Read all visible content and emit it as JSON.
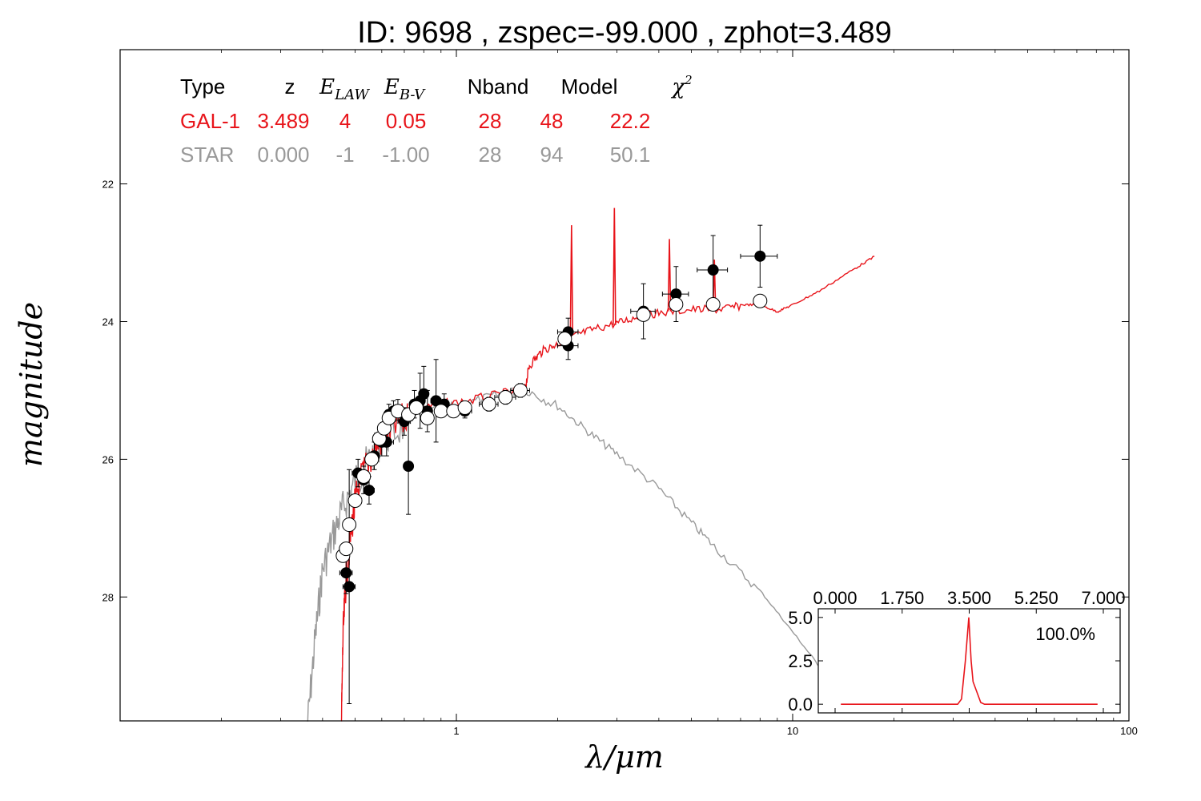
{
  "title": "ID:  9698  , zspec=-99.000 , zphot=3.489",
  "colors": {
    "galaxy": "#e8141a",
    "star": "#999999",
    "axis": "#000000"
  },
  "table": {
    "headers": [
      "Type",
      "z",
      "E_LAW",
      "E_B-V",
      "Nband",
      "Model",
      "χ²"
    ],
    "rows": [
      {
        "name": "galaxy",
        "color": "#e8141a",
        "cells": [
          "GAL-1",
          "3.489",
          "4",
          "0.05",
          "28",
          "48",
          "22.2"
        ]
      },
      {
        "name": "star",
        "color": "#999999",
        "cells": [
          "STAR",
          "0.000",
          "-1",
          "-1.00",
          "28",
          "94",
          "50.1"
        ]
      }
    ]
  },
  "chart_data": [
    {
      "type": "scatter",
      "xlabel": "λ/μm",
      "ylabel": "magnitude",
      "xscale": "log",
      "xlim": [
        0.1,
        100
      ],
      "ylim": [
        29.8,
        20.05
      ],
      "y_inverted": true,
      "xticks": [
        1,
        10,
        100
      ],
      "xtick_labels": [
        "1",
        "10",
        "100"
      ],
      "yticks": [
        22,
        24,
        26,
        28
      ],
      "ytick_labels": [
        "22",
        "24",
        "26",
        "28"
      ],
      "series": [
        {
          "kind": "observed",
          "marker": "filled",
          "points": [
            {
              "x": 0.47,
              "y": 27.65,
              "xerr": 0.02,
              "yerr": 0.3
            },
            {
              "x": 0.48,
              "y": 27.85,
              "xerr": 0.02,
              "yerr": 1.7
            },
            {
              "x": 0.51,
              "y": 26.2,
              "xerr": 0.02,
              "yerr": 0.2
            },
            {
              "x": 0.53,
              "y": 26.3,
              "xerr": 0.02,
              "yerr": 0.2
            },
            {
              "x": 0.55,
              "y": 26.45,
              "xerr": 0.02,
              "yerr": 0.2
            },
            {
              "x": 0.57,
              "y": 25.95,
              "xerr": 0.02,
              "yerr": 0.2
            },
            {
              "x": 0.6,
              "y": 25.75,
              "xerr": 0.03,
              "yerr": 0.2
            },
            {
              "x": 0.62,
              "y": 25.75,
              "xerr": 0.03,
              "yerr": 0.2
            },
            {
              "x": 0.63,
              "y": 25.35,
              "xerr": 0.02,
              "yerr": 0.15
            },
            {
              "x": 0.65,
              "y": 25.3,
              "xerr": 0.02,
              "yerr": 0.15
            },
            {
              "x": 0.67,
              "y": 25.28,
              "xerr": 0.02,
              "yerr": 0.15
            },
            {
              "x": 0.7,
              "y": 25.45,
              "xerr": 0.03,
              "yerr": 0.2
            },
            {
              "x": 0.72,
              "y": 26.1,
              "xerr": 0.02,
              "yerr": 0.7
            },
            {
              "x": 0.75,
              "y": 25.2,
              "xerr": 0.02,
              "yerr": 0.2
            },
            {
              "x": 0.78,
              "y": 25.15,
              "xerr": 0.02,
              "yerr": 0.4
            },
            {
              "x": 0.8,
              "y": 25.05,
              "xerr": 0.02,
              "yerr": 0.4
            },
            {
              "x": 0.82,
              "y": 25.3,
              "xerr": 0.02,
              "yerr": 0.3
            },
            {
              "x": 0.87,
              "y": 25.15,
              "xerr": 0.03,
              "yerr": 0.6
            },
            {
              "x": 0.92,
              "y": 25.2,
              "xerr": 0.03,
              "yerr": 0.15
            },
            {
              "x": 1.06,
              "y": 25.3,
              "xerr": 0.05,
              "yerr": 0.1
            },
            {
              "x": 1.25,
              "y": 25.2,
              "xerr": 0.08,
              "yerr": 0.1
            },
            {
              "x": 1.4,
              "y": 25.1,
              "xerr": 0.1,
              "yerr": 0.1
            },
            {
              "x": 1.55,
              "y": 25.0,
              "xerr": 0.1,
              "yerr": 0.1
            },
            {
              "x": 2.15,
              "y": 24.15,
              "xerr": 0.15,
              "yerr": 0.2
            },
            {
              "x": 2.15,
              "y": 24.35,
              "xerr": 0.15,
              "yerr": 0.2
            },
            {
              "x": 3.6,
              "y": 23.85,
              "xerr": 0.3,
              "yerr": 0.4
            },
            {
              "x": 4.5,
              "y": 23.6,
              "xerr": 0.4,
              "yerr": 0.4
            },
            {
              "x": 5.8,
              "y": 23.25,
              "xerr": 0.6,
              "yerr": 0.5
            },
            {
              "x": 8.0,
              "y": 23.05,
              "xerr": 1.0,
              "yerr": 0.45
            }
          ]
        },
        {
          "kind": "model",
          "marker": "open",
          "points": [
            {
              "x": 0.46,
              "y": 27.4
            },
            {
              "x": 0.47,
              "y": 27.3
            },
            {
              "x": 0.48,
              "y": 26.95
            },
            {
              "x": 0.5,
              "y": 26.6
            },
            {
              "x": 0.53,
              "y": 26.25
            },
            {
              "x": 0.56,
              "y": 26.0
            },
            {
              "x": 0.59,
              "y": 25.7
            },
            {
              "x": 0.61,
              "y": 25.55
            },
            {
              "x": 0.63,
              "y": 25.4
            },
            {
              "x": 0.67,
              "y": 25.3
            },
            {
              "x": 0.72,
              "y": 25.35
            },
            {
              "x": 0.76,
              "y": 25.25
            },
            {
              "x": 0.82,
              "y": 25.4
            },
            {
              "x": 0.9,
              "y": 25.3
            },
            {
              "x": 0.98,
              "y": 25.3
            },
            {
              "x": 1.06,
              "y": 25.25
            },
            {
              "x": 1.25,
              "y": 25.2
            },
            {
              "x": 1.4,
              "y": 25.1
            },
            {
              "x": 1.55,
              "y": 25.0
            },
            {
              "x": 2.1,
              "y": 24.25
            },
            {
              "x": 3.6,
              "y": 23.9
            },
            {
              "x": 4.5,
              "y": 23.75
            },
            {
              "x": 5.8,
              "y": 23.75
            },
            {
              "x": 8.0,
              "y": 23.7
            }
          ]
        },
        {
          "kind": "galaxy-template",
          "line": "red",
          "points": [
            {
              "x": 0.455,
              "y": 29.8
            },
            {
              "x": 0.46,
              "y": 28.5
            },
            {
              "x": 0.47,
              "y": 27.6
            },
            {
              "x": 0.49,
              "y": 26.8
            },
            {
              "x": 0.51,
              "y": 26.3
            },
            {
              "x": 0.55,
              "y": 25.9
            },
            {
              "x": 0.6,
              "y": 25.6
            },
            {
              "x": 0.65,
              "y": 25.4
            },
            {
              "x": 0.72,
              "y": 25.3
            },
            {
              "x": 0.8,
              "y": 25.2
            },
            {
              "x": 1.0,
              "y": 25.15
            },
            {
              "x": 1.3,
              "y": 25.05
            },
            {
              "x": 1.6,
              "y": 24.95
            },
            {
              "x": 1.65,
              "y": 24.6
            },
            {
              "x": 1.8,
              "y": 24.4
            },
            {
              "x": 2.0,
              "y": 24.3
            },
            {
              "x": 2.2,
              "y": 24.2
            },
            {
              "x": 2.5,
              "y": 24.1
            },
            {
              "x": 3.0,
              "y": 24.0
            },
            {
              "x": 3.5,
              "y": 23.9
            },
            {
              "x": 4.0,
              "y": 23.85
            },
            {
              "x": 5.0,
              "y": 23.8
            },
            {
              "x": 6.0,
              "y": 23.8
            },
            {
              "x": 7.0,
              "y": 23.75
            },
            {
              "x": 8.0,
              "y": 23.75
            },
            {
              "x": 9.0,
              "y": 23.85
            },
            {
              "x": 10,
              "y": 23.75
            },
            {
              "x": 12,
              "y": 23.55
            },
            {
              "x": 15,
              "y": 23.25
            },
            {
              "x": 17.5,
              "y": 23.05
            }
          ],
          "spikes": [
            {
              "x": 2.2,
              "base": 24.2,
              "peak": 22.6
            },
            {
              "x": 2.95,
              "base": 24.05,
              "peak": 22.35
            },
            {
              "x": 4.3,
              "base": 23.85,
              "peak": 22.8
            },
            {
              "x": 5.85,
              "base": 23.8,
              "peak": 23.1
            }
          ]
        },
        {
          "kind": "star-template",
          "line": "gray",
          "points": [
            {
              "x": 0.36,
              "y": 29.8
            },
            {
              "x": 0.38,
              "y": 28.5
            },
            {
              "x": 0.4,
              "y": 27.5
            },
            {
              "x": 0.43,
              "y": 27.0
            },
            {
              "x": 0.46,
              "y": 26.6
            },
            {
              "x": 0.5,
              "y": 26.2
            },
            {
              "x": 0.55,
              "y": 25.9
            },
            {
              "x": 0.6,
              "y": 25.6
            },
            {
              "x": 0.7,
              "y": 25.4
            },
            {
              "x": 0.8,
              "y": 25.3
            },
            {
              "x": 1.0,
              "y": 25.2
            },
            {
              "x": 1.3,
              "y": 25.05
            },
            {
              "x": 1.6,
              "y": 24.95
            },
            {
              "x": 2.0,
              "y": 25.2
            },
            {
              "x": 2.5,
              "y": 25.6
            },
            {
              "x": 3.0,
              "y": 25.9
            },
            {
              "x": 4.0,
              "y": 26.4
            },
            {
              "x": 5.0,
              "y": 26.9
            },
            {
              "x": 6.0,
              "y": 27.3
            },
            {
              "x": 8.0,
              "y": 27.9
            },
            {
              "x": 10,
              "y": 28.5
            },
            {
              "x": 12,
              "y": 29.0
            },
            {
              "x": 15,
              "y": 29.6
            }
          ]
        }
      ]
    },
    {
      "type": "line",
      "xlim": [
        0,
        7
      ],
      "ylim": [
        -0.5,
        5.5
      ],
      "xticks": [
        0,
        1.75,
        3.5,
        5.25,
        7
      ],
      "xtick_labels": [
        "0.000",
        "1.750",
        "3.500",
        "5.250",
        "7.000"
      ],
      "yticks": [
        0,
        2.5,
        5.0
      ],
      "ytick_labels": [
        "0.0",
        "2.5",
        "5.0"
      ],
      "annotation": "100.0%",
      "series": [
        {
          "points": [
            {
              "x": 0.15,
              "y": 0
            },
            {
              "x": 3.2,
              "y": 0
            },
            {
              "x": 3.3,
              "y": 0.3
            },
            {
              "x": 3.4,
              "y": 2.5
            },
            {
              "x": 3.489,
              "y": 5.0
            },
            {
              "x": 3.55,
              "y": 2.5
            },
            {
              "x": 3.6,
              "y": 1.3
            },
            {
              "x": 3.7,
              "y": 0.7
            },
            {
              "x": 3.8,
              "y": 0.1
            },
            {
              "x": 3.9,
              "y": 0
            },
            {
              "x": 6.85,
              "y": 0
            }
          ]
        }
      ]
    }
  ]
}
